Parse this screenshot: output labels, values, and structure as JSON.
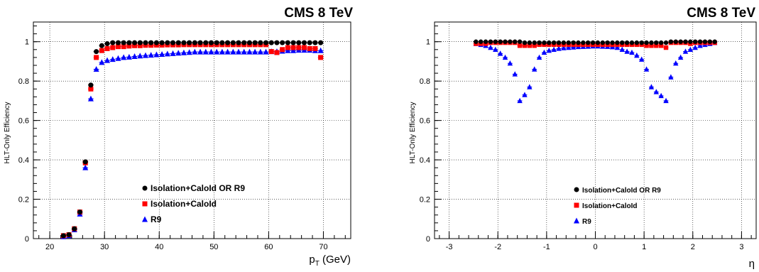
{
  "chart_data": [
    {
      "type": "scatter",
      "header": "CMS 8 TeV",
      "ylabel": "HLT-Only Efficiency",
      "xlabel": "p_T (GeV)",
      "xlim": [
        17,
        75
      ],
      "ylim": [
        0,
        1.1
      ],
      "xticks": [
        "20",
        "30",
        "40",
        "50",
        "60",
        "70"
      ],
      "yticks": [
        "0",
        "0.2",
        "0.4",
        "0.6",
        "0.8",
        "1"
      ],
      "grid": true,
      "legend_position": "bottom-center",
      "series": [
        {
          "name": "Isolation+CaloId OR R9",
          "color": "#000000",
          "marker": "circle",
          "x": [
            22.5,
            23.5,
            24.5,
            25.5,
            26.5,
            27.5,
            28.5,
            29.5,
            30.5,
            31.5,
            32.5,
            33.5,
            34.5,
            35.5,
            36.5,
            37.5,
            38.5,
            39.5,
            40.5,
            41.5,
            42.5,
            43.5,
            44.5,
            45.5,
            46.5,
            47.5,
            48.5,
            49.5,
            50.5,
            51.5,
            52.5,
            53.5,
            54.5,
            55.5,
            56.5,
            57.5,
            58.5,
            59.5,
            60.5,
            61.5,
            62.5,
            63.5,
            64.5,
            65.5,
            66.5,
            67.5,
            68.5,
            69.5
          ],
          "y": [
            0.015,
            0.02,
            0.05,
            0.135,
            0.39,
            0.78,
            0.95,
            0.98,
            0.99,
            0.995,
            0.995,
            0.995,
            0.995,
            0.995,
            0.995,
            0.995,
            0.995,
            0.995,
            0.995,
            0.995,
            0.995,
            0.995,
            0.995,
            0.995,
            0.995,
            0.995,
            0.995,
            0.995,
            0.995,
            0.995,
            0.995,
            0.995,
            0.995,
            0.995,
            0.995,
            0.995,
            0.995,
            0.995,
            0.995,
            0.995,
            0.995,
            0.995,
            0.995,
            0.995,
            0.995,
            0.995,
            0.995,
            0.995
          ]
        },
        {
          "name": "Isolation+CaloId",
          "color": "#ff0000",
          "marker": "square",
          "x": [
            22.5,
            23.5,
            24.5,
            25.5,
            26.5,
            27.5,
            28.5,
            29.5,
            30.5,
            31.5,
            32.5,
            33.5,
            34.5,
            35.5,
            36.5,
            37.5,
            38.5,
            39.5,
            40.5,
            41.5,
            42.5,
            43.5,
            44.5,
            45.5,
            46.5,
            47.5,
            48.5,
            49.5,
            50.5,
            51.5,
            52.5,
            53.5,
            54.5,
            55.5,
            56.5,
            57.5,
            58.5,
            59.5,
            60.5,
            61.5,
            62.5,
            63.5,
            64.5,
            65.5,
            66.5,
            67.5,
            68.5,
            69.5
          ],
          "y": [
            0.015,
            0.02,
            0.05,
            0.135,
            0.385,
            0.76,
            0.92,
            0.955,
            0.965,
            0.97,
            0.975,
            0.975,
            0.978,
            0.98,
            0.98,
            0.982,
            0.982,
            0.983,
            0.983,
            0.984,
            0.984,
            0.984,
            0.985,
            0.985,
            0.985,
            0.985,
            0.985,
            0.985,
            0.985,
            0.985,
            0.985,
            0.985,
            0.985,
            0.985,
            0.985,
            0.985,
            0.985,
            0.985,
            0.95,
            0.945,
            0.96,
            0.97,
            0.97,
            0.97,
            0.97,
            0.965,
            0.965,
            0.92
          ]
        },
        {
          "name": "R9",
          "color": "#0000ff",
          "marker": "triangle",
          "x": [
            22.5,
            23.5,
            24.5,
            25.5,
            26.5,
            27.5,
            28.5,
            29.5,
            30.5,
            31.5,
            32.5,
            33.5,
            34.5,
            35.5,
            36.5,
            37.5,
            38.5,
            39.5,
            40.5,
            41.5,
            42.5,
            43.5,
            44.5,
            45.5,
            46.5,
            47.5,
            48.5,
            49.5,
            50.5,
            51.5,
            52.5,
            53.5,
            54.5,
            55.5,
            56.5,
            57.5,
            58.5,
            59.5,
            60.5,
            61.5,
            62.5,
            63.5,
            64.5,
            65.5,
            66.5,
            67.5,
            68.5,
            69.5
          ],
          "y": [
            0.01,
            0.015,
            0.045,
            0.125,
            0.36,
            0.71,
            0.86,
            0.895,
            0.905,
            0.91,
            0.915,
            0.92,
            0.922,
            0.925,
            0.928,
            0.93,
            0.932,
            0.934,
            0.936,
            0.938,
            0.94,
            0.942,
            0.944,
            0.946,
            0.948,
            0.948,
            0.948,
            0.948,
            0.948,
            0.948,
            0.948,
            0.948,
            0.948,
            0.948,
            0.948,
            0.948,
            0.948,
            0.948,
            0.95,
            0.95,
            0.952,
            0.955,
            0.955,
            0.957,
            0.957,
            0.957,
            0.955,
            0.955
          ]
        }
      ]
    },
    {
      "type": "scatter",
      "header": "CMS 8 TeV",
      "ylabel": "HLT-Only Efficiency",
      "xlabel": "η",
      "xlim": [
        -3.3,
        3.3
      ],
      "ylim": [
        0,
        1.1
      ],
      "xticks": [
        "-3",
        "-2",
        "-1",
        "0",
        "1",
        "2",
        "3"
      ],
      "yticks": [
        "0",
        "0.2",
        "0.4",
        "0.6",
        "0.8",
        "1"
      ],
      "grid": true,
      "legend_position": "bottom-left",
      "series": [
        {
          "name": "Isolation+CaloId OR R9",
          "color": "#000000",
          "marker": "circle",
          "x": [
            -2.45,
            -2.35,
            -2.25,
            -2.15,
            -2.05,
            -1.95,
            -1.85,
            -1.75,
            -1.65,
            -1.55,
            -1.45,
            -1.35,
            -1.25,
            -1.15,
            -1.05,
            -0.95,
            -0.85,
            -0.75,
            -0.65,
            -0.55,
            -0.45,
            -0.35,
            -0.25,
            -0.15,
            -0.05,
            0.05,
            0.15,
            0.25,
            0.35,
            0.45,
            0.55,
            0.65,
            0.75,
            0.85,
            0.95,
            1.05,
            1.15,
            1.25,
            1.35,
            1.45,
            1.55,
            1.65,
            1.75,
            1.85,
            1.95,
            2.05,
            2.15,
            2.25,
            2.35,
            2.45
          ],
          "y": [
            1,
            1,
            1,
            1,
            1,
            1,
            1,
            1,
            1,
            1,
            0.995,
            0.995,
            0.995,
            0.995,
            0.995,
            0.995,
            0.995,
            0.995,
            0.995,
            0.995,
            0.995,
            0.995,
            0.995,
            0.995,
            0.995,
            0.995,
            0.995,
            0.995,
            0.995,
            0.995,
            0.995,
            0.995,
            0.995,
            0.995,
            0.995,
            0.995,
            0.995,
            0.995,
            0.995,
            0.995,
            1,
            1,
            1,
            1,
            1,
            1,
            1,
            1,
            1,
            1
          ]
        },
        {
          "name": "Isolation+CaloId",
          "color": "#ff0000",
          "marker": "square",
          "x": [
            -2.45,
            -2.35,
            -2.25,
            -2.15,
            -2.05,
            -1.95,
            -1.85,
            -1.75,
            -1.65,
            -1.55,
            -1.45,
            -1.35,
            -1.25,
            -1.15,
            -1.05,
            -0.95,
            -0.85,
            -0.75,
            -0.65,
            -0.55,
            -0.45,
            -0.35,
            -0.25,
            -0.15,
            -0.05,
            0.05,
            0.15,
            0.25,
            0.35,
            0.45,
            0.55,
            0.65,
            0.75,
            0.85,
            0.95,
            1.05,
            1.15,
            1.25,
            1.35,
            1.45,
            1.55,
            1.65,
            1.75,
            1.85,
            1.95,
            2.05,
            2.15,
            2.25,
            2.35,
            2.45
          ],
          "y": [
            0.99,
            0.99,
            0.99,
            0.995,
            0.995,
            0.995,
            0.995,
            0.995,
            0.995,
            0.98,
            0.98,
            0.98,
            0.98,
            0.985,
            0.985,
            0.985,
            0.985,
            0.985,
            0.985,
            0.985,
            0.985,
            0.985,
            0.985,
            0.985,
            0.985,
            0.985,
            0.985,
            0.985,
            0.985,
            0.985,
            0.985,
            0.985,
            0.985,
            0.985,
            0.985,
            0.98,
            0.98,
            0.98,
            0.98,
            0.97,
            0.995,
            0.995,
            0.995,
            0.995,
            0.99,
            0.995,
            0.995,
            0.995,
            0.995,
            0.995
          ]
        },
        {
          "name": "R9",
          "color": "#0000ff",
          "marker": "triangle",
          "x": [
            -2.45,
            -2.35,
            -2.25,
            -2.15,
            -2.05,
            -1.95,
            -1.85,
            -1.75,
            -1.65,
            -1.55,
            -1.45,
            -1.35,
            -1.25,
            -1.15,
            -1.05,
            -0.95,
            -0.85,
            -0.75,
            -0.65,
            -0.55,
            -0.45,
            -0.35,
            -0.25,
            -0.15,
            -0.05,
            0.05,
            0.15,
            0.25,
            0.35,
            0.45,
            0.55,
            0.65,
            0.75,
            0.85,
            0.95,
            1.05,
            1.15,
            1.25,
            1.35,
            1.45,
            1.55,
            1.65,
            1.75,
            1.85,
            1.95,
            2.05,
            2.15,
            2.25,
            2.35,
            2.45
          ],
          "y": [
            0.99,
            0.985,
            0.98,
            0.97,
            0.96,
            0.94,
            0.92,
            0.89,
            0.835,
            0.7,
            0.73,
            0.77,
            0.86,
            0.92,
            0.945,
            0.955,
            0.96,
            0.965,
            0.968,
            0.97,
            0.972,
            0.974,
            0.975,
            0.976,
            0.977,
            0.977,
            0.976,
            0.975,
            0.973,
            0.97,
            0.96,
            0.95,
            0.945,
            0.93,
            0.91,
            0.86,
            0.77,
            0.745,
            0.725,
            0.7,
            0.82,
            0.89,
            0.92,
            0.95,
            0.96,
            0.97,
            0.98,
            0.985,
            0.99,
            0.995
          ]
        }
      ]
    }
  ]
}
